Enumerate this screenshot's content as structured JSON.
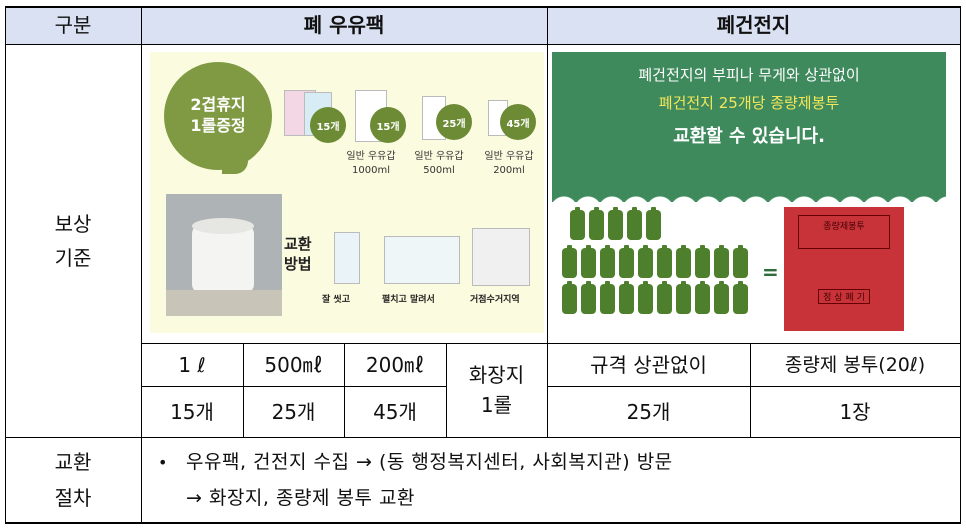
{
  "header": {
    "category": "구분",
    "milk_col": "폐 우유팩",
    "battery_col": "폐건전지"
  },
  "rows": {
    "reward_label": "보상\n기준",
    "procedure_label": "교환\n절차"
  },
  "milk_image": {
    "badge": "2겹휴지\n1롤증정",
    "counts": [
      "15개",
      "15개",
      "25개",
      "45개"
    ],
    "captions": [
      "일반 우유갑\n1000ml",
      "일반 우유갑\n500ml",
      "일반 우유갑\n200ml"
    ],
    "method_label": "교환\n방법",
    "steps": [
      "잘 씻고",
      "펼치고 말려서",
      "거점수거지역"
    ]
  },
  "battery_image": {
    "line1": "폐건전지의 부피나 무게와 상관없이",
    "line2": "폐건전지 25개당 종량제봉투",
    "line3": "교환할 수 있습니다.",
    "equals": "=",
    "bag_header": "종량제봉투",
    "bag_stamp": "정 상 폐 기",
    "colors": {
      "green": "#3e8a5d",
      "yellow": "#f3e65a",
      "bag": "#c8333a"
    }
  },
  "milk_table": {
    "sizes": [
      "1 ℓ",
      "500㎖",
      "200㎖"
    ],
    "quantities": [
      "15개",
      "25개",
      "45개"
    ],
    "reward": "화장지\n1롤"
  },
  "battery_table": {
    "spec_header": "규격 상관없이",
    "spec_value": "25개",
    "reward_header": "종량제 봉투(20ℓ)",
    "reward_value": "1장"
  },
  "procedure": {
    "bullet": "•",
    "line1": "우유팩, 건전지 수집 → (동 행정복지센터, 사회복지관) 방문",
    "line2": "→ 화장지, 종량제 봉투 교환"
  }
}
